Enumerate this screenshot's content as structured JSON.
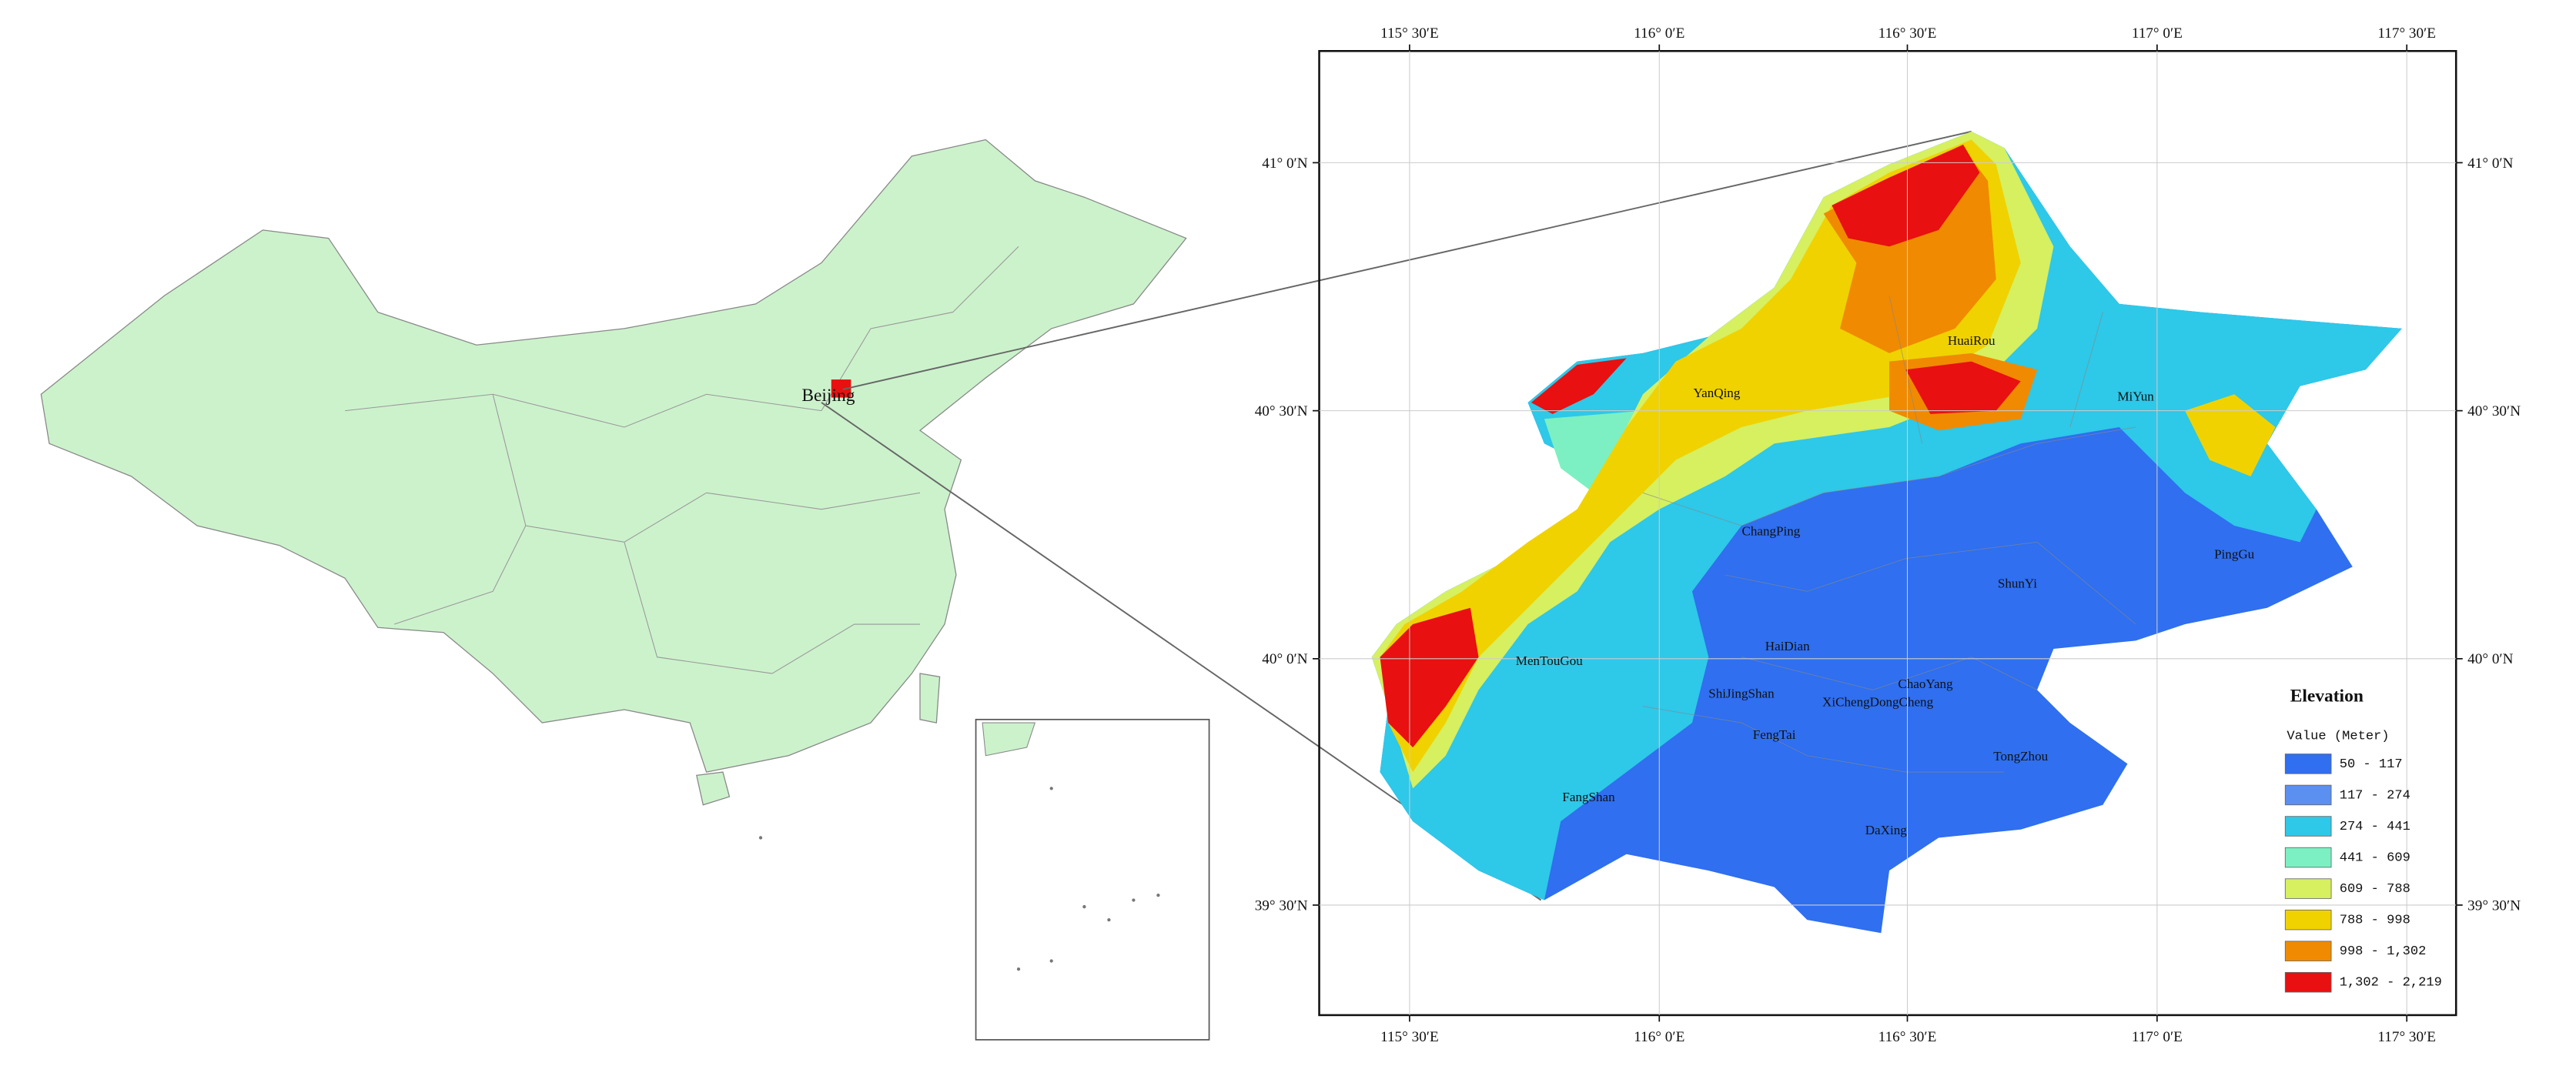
{
  "inset_map": {
    "label": "Beijing"
  },
  "graticule": {
    "longitudes": [
      "115° 30′E",
      "116° 0′E",
      "116° 30′E",
      "117° 0′E",
      "117° 30′E"
    ],
    "latitudes": [
      "41° 0′N",
      "40° 30′N",
      "40° 0′N",
      "39° 30′N"
    ]
  },
  "districts": [
    "YanQing",
    "HuaiRou",
    "MiYun",
    "ChangPing",
    "ShunYi",
    "PingGu",
    "HaiDian",
    "MenTouGou",
    "ShiJingShan",
    "XiChengDongCheng",
    "ChaoYang",
    "FengTai",
    "TongZhou",
    "FangShan",
    "DaXing"
  ],
  "legend": {
    "title": "Elevation",
    "subtitle": "Value (Meter)",
    "classes": [
      {
        "label": "50 - 117",
        "color": "#2f6ff0"
      },
      {
        "label": "117 - 274",
        "color": "#5b8ff0"
      },
      {
        "label": "274 - 441",
        "color": "#2ec8e8"
      },
      {
        "label": "441 - 609",
        "color": "#7cf0c2"
      },
      {
        "label": "609 - 788",
        "color": "#d6f060"
      },
      {
        "label": "788 - 998",
        "color": "#f0d200"
      },
      {
        "label": "998 - 1,302",
        "color": "#f08a00"
      },
      {
        "label": "1,302 - 2,219",
        "color": "#e81010"
      }
    ]
  }
}
